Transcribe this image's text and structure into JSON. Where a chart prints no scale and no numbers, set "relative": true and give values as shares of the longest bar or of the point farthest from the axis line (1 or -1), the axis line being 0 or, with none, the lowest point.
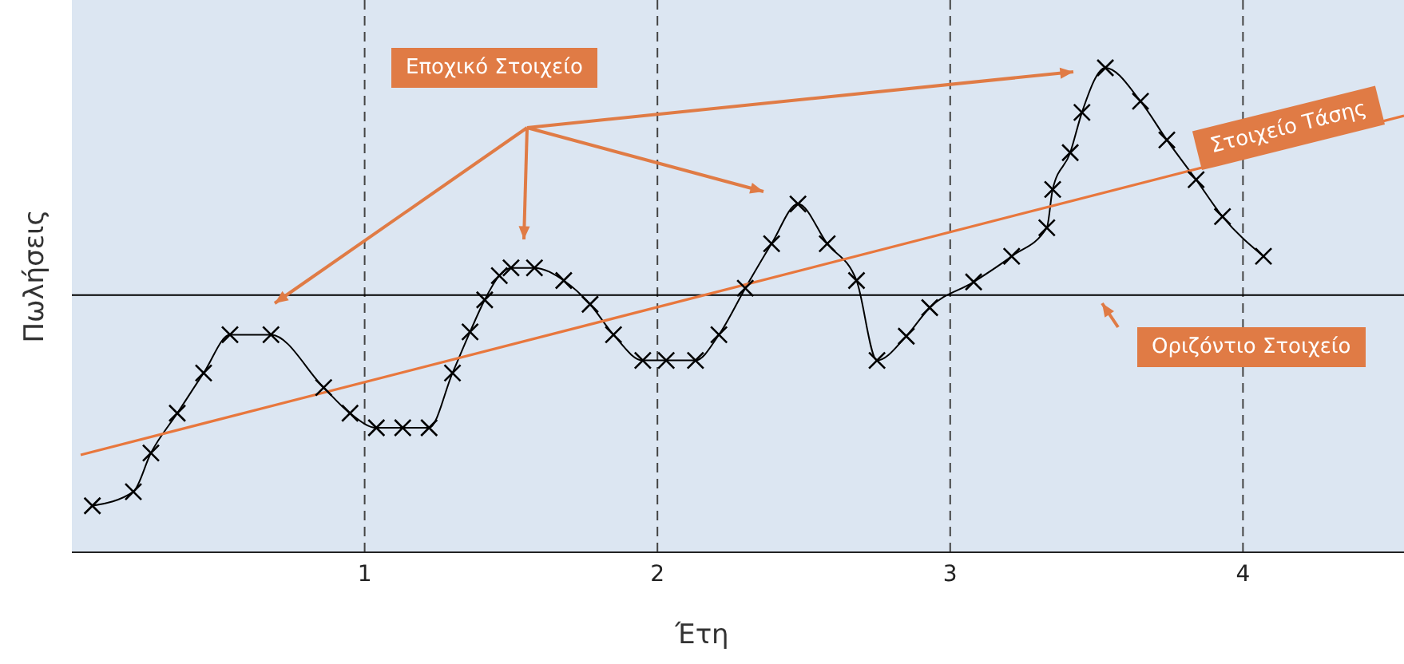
{
  "chart_data": {
    "type": "line",
    "relative": true,
    "xlabel": "Έτη",
    "ylabel": "Πωλήσεις",
    "xlim": [
      0,
      4.55
    ],
    "xticks": [
      1,
      2,
      3,
      4
    ],
    "grid": "x",
    "annotations": [
      "Εποχικό Στοιχείο"
    ],
    "ref_lines": [
      {
        "axis": "y",
        "value": 0.531,
        "label": "Οριζόντιο Στοιχείο",
        "color": "#000000"
      }
    ],
    "series": [
      {
        "color": "#000000",
        "marker": "cross",
        "x": [
          0.07,
          0.21,
          0.27,
          0.36,
          0.45,
          0.54,
          0.68,
          0.86,
          0.95,
          1.04,
          1.13,
          1.22,
          1.3,
          1.36,
          1.41,
          1.46,
          1.5,
          1.58,
          1.68,
          1.77,
          1.85,
          1.95,
          2.03,
          2.13,
          2.21,
          2.3,
          2.39,
          2.48,
          2.58,
          2.68,
          2.75,
          2.85,
          2.93,
          3.08,
          3.21,
          3.33,
          3.35,
          3.41,
          3.45,
          3.53,
          3.65,
          3.74,
          3.84,
          3.93,
          4.07
        ],
        "values": [
          0.096,
          0.125,
          0.205,
          0.287,
          0.37,
          0.449,
          0.449,
          0.34,
          0.287,
          0.257,
          0.257,
          0.257,
          0.37,
          0.455,
          0.521,
          0.571,
          0.587,
          0.587,
          0.561,
          0.512,
          0.449,
          0.396,
          0.396,
          0.396,
          0.449,
          0.545,
          0.637,
          0.719,
          0.637,
          0.561,
          0.396,
          0.446,
          0.505,
          0.558,
          0.611,
          0.67,
          0.749,
          0.825,
          0.908,
          1.0,
          0.931,
          0.851,
          0.769,
          0.693,
          0.611
        ]
      },
      {
        "name": "Στοιχείο Τάσης",
        "color": "#e8773d",
        "marker": "none",
        "x": [
          0.03,
          4.55
        ],
        "values": [
          0.201,
          0.901
        ]
      }
    ]
  }
}
